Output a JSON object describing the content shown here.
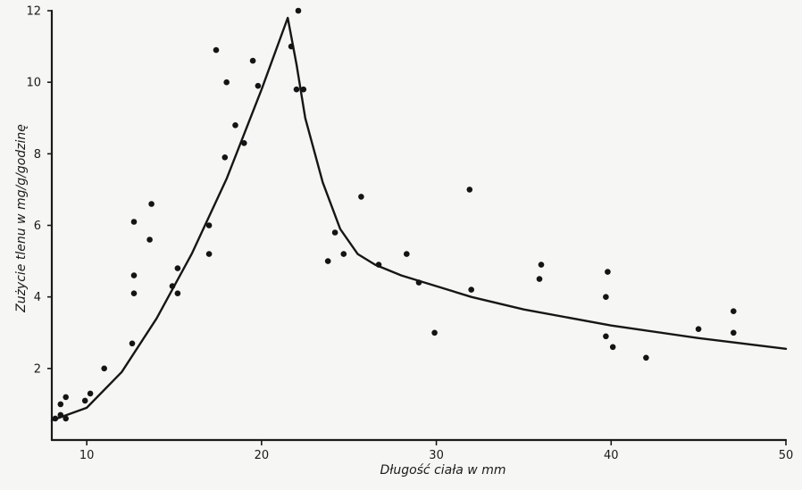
{
  "chart_data": {
    "type": "scatter",
    "title": "",
    "xlabel": "Długość ciała w mm",
    "ylabel": "Zużycie tlenu w mg/g/godzinę",
    "xlim": [
      8,
      50
    ],
    "ylim": [
      0,
      12
    ],
    "x_ticks": [
      10,
      20,
      30,
      40,
      50
    ],
    "y_ticks": [
      2,
      4,
      6,
      8,
      10,
      12
    ],
    "grid": false,
    "legend": "none",
    "colors": {
      "points": "#141414",
      "line": "#161616",
      "axes": "#1a1a1a"
    },
    "series": [
      {
        "type": "scatter",
        "points": [
          [
            8.2,
            0.6
          ],
          [
            8.5,
            0.7
          ],
          [
            8.5,
            1.0
          ],
          [
            8.8,
            0.6
          ],
          [
            8.8,
            1.2
          ],
          [
            9.9,
            1.1
          ],
          [
            10.2,
            1.3
          ],
          [
            11.0,
            2.0
          ],
          [
            12.6,
            2.7
          ],
          [
            12.7,
            4.1
          ],
          [
            12.7,
            4.6
          ],
          [
            12.7,
            6.1
          ],
          [
            13.6,
            5.6
          ],
          [
            13.7,
            6.6
          ],
          [
            14.9,
            4.3
          ],
          [
            15.2,
            4.1
          ],
          [
            15.2,
            4.8
          ],
          [
            17.0,
            5.2
          ],
          [
            17.0,
            6.0
          ],
          [
            17.4,
            10.9
          ],
          [
            17.9,
            7.9
          ],
          [
            18.0,
            10.0
          ],
          [
            18.5,
            8.8
          ],
          [
            19.0,
            8.3
          ],
          [
            19.5,
            10.6
          ],
          [
            19.8,
            9.9
          ],
          [
            21.7,
            11.0
          ],
          [
            22.0,
            9.8
          ],
          [
            22.1,
            12.0
          ],
          [
            22.4,
            9.8
          ],
          [
            23.8,
            5.0
          ],
          [
            24.2,
            5.8
          ],
          [
            24.7,
            5.2
          ],
          [
            25.7,
            6.8
          ],
          [
            26.7,
            4.9
          ],
          [
            28.3,
            5.2
          ],
          [
            29.0,
            4.4
          ],
          [
            29.9,
            3.0
          ],
          [
            31.9,
            7.0
          ],
          [
            32.0,
            4.2
          ],
          [
            35.9,
            4.5
          ],
          [
            36.0,
            4.9
          ],
          [
            39.7,
            2.9
          ],
          [
            39.7,
            4.0
          ],
          [
            39.8,
            4.7
          ],
          [
            40.1,
            2.6
          ],
          [
            42.0,
            2.3
          ],
          [
            45.0,
            3.1
          ],
          [
            47.0,
            3.0
          ],
          [
            47.0,
            3.6
          ]
        ]
      },
      {
        "type": "line",
        "points": [
          [
            8.0,
            0.55
          ],
          [
            10.0,
            0.9
          ],
          [
            12.0,
            1.9
          ],
          [
            14.0,
            3.4
          ],
          [
            16.0,
            5.2
          ],
          [
            18.0,
            7.3
          ],
          [
            20.0,
            9.8
          ],
          [
            21.5,
            11.8
          ],
          [
            22.0,
            10.5
          ],
          [
            22.5,
            9.0
          ],
          [
            23.5,
            7.2
          ],
          [
            24.5,
            5.9
          ],
          [
            25.5,
            5.2
          ],
          [
            26.5,
            4.9
          ],
          [
            28.0,
            4.6
          ],
          [
            30.0,
            4.3
          ],
          [
            32.0,
            4.0
          ],
          [
            35.0,
            3.65
          ],
          [
            40.0,
            3.2
          ],
          [
            45.0,
            2.85
          ],
          [
            50.0,
            2.55
          ]
        ]
      }
    ]
  }
}
